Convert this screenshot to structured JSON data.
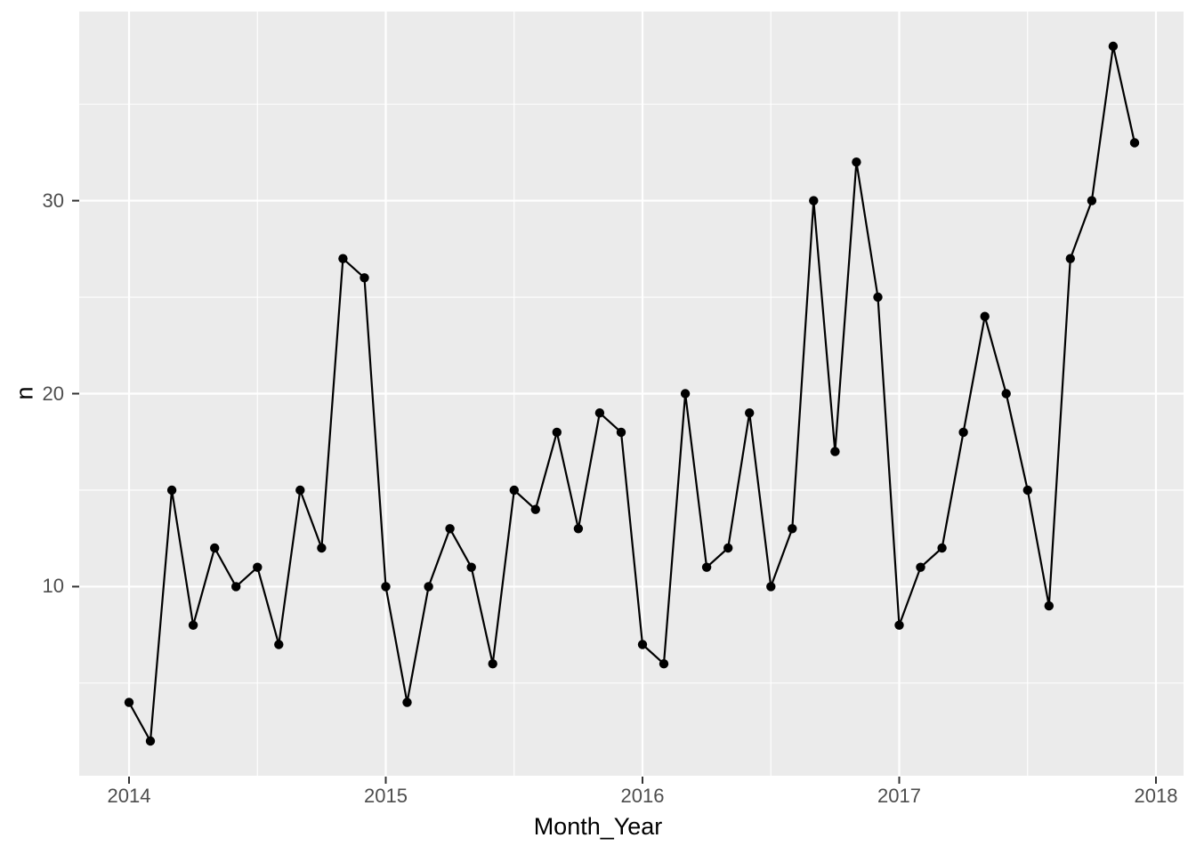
{
  "chart_data": {
    "type": "line",
    "title": "",
    "xlabel": "Month_Year",
    "ylabel": "n",
    "x": [
      "2014-01",
      "2014-02",
      "2014-03",
      "2014-04",
      "2014-05",
      "2014-06",
      "2014-07",
      "2014-08",
      "2014-09",
      "2014-10",
      "2014-11",
      "2014-12",
      "2015-01",
      "2015-02",
      "2015-03",
      "2015-04",
      "2015-05",
      "2015-06",
      "2015-07",
      "2015-08",
      "2015-09",
      "2015-10",
      "2015-11",
      "2015-12",
      "2016-01",
      "2016-02",
      "2016-03",
      "2016-04",
      "2016-05",
      "2016-06",
      "2016-07",
      "2016-08",
      "2016-09",
      "2016-10",
      "2016-11",
      "2016-12",
      "2017-01",
      "2017-02",
      "2017-03",
      "2017-04",
      "2017-05",
      "2017-06",
      "2017-07",
      "2017-08",
      "2017-09",
      "2017-10",
      "2017-11",
      "2017-12"
    ],
    "series": [
      {
        "name": "n",
        "values": [
          4,
          2,
          15,
          8,
          12,
          10,
          11,
          7,
          15,
          12,
          27,
          26,
          10,
          4,
          10,
          13,
          11,
          6,
          15,
          14,
          18,
          13,
          19,
          18,
          7,
          6,
          20,
          11,
          12,
          19,
          10,
          13,
          30,
          17,
          32,
          25,
          8,
          11,
          12,
          18,
          24,
          20,
          15,
          9,
          27,
          30,
          38,
          33
        ]
      }
    ],
    "x_ticks": [
      {
        "label": "2014",
        "month_index": 0
      },
      {
        "label": "2015",
        "month_index": 12
      },
      {
        "label": "2016",
        "month_index": 24
      },
      {
        "label": "2017",
        "month_index": 36
      },
      {
        "label": "2018",
        "month_index": 48
      }
    ],
    "x_minor_month_indices": [
      6,
      18,
      30,
      42
    ],
    "y_ticks": [
      {
        "label": "10",
        "value": 10
      },
      {
        "label": "20",
        "value": 20
      },
      {
        "label": "30",
        "value": 30
      }
    ],
    "y_minor_breaks": [
      5,
      15,
      25,
      35
    ],
    "ylim": [
      0.2,
      39.8
    ],
    "grid": true,
    "legend": false,
    "theme": "ggplot-gray",
    "colors": {
      "panel_background": "#EBEBEB",
      "grid_line": "#FFFFFF",
      "series_line": "#000000",
      "point": "#000000",
      "tick_mark": "#333333",
      "tick_text": "#4D4D4D",
      "title_text": "#000000"
    }
  }
}
